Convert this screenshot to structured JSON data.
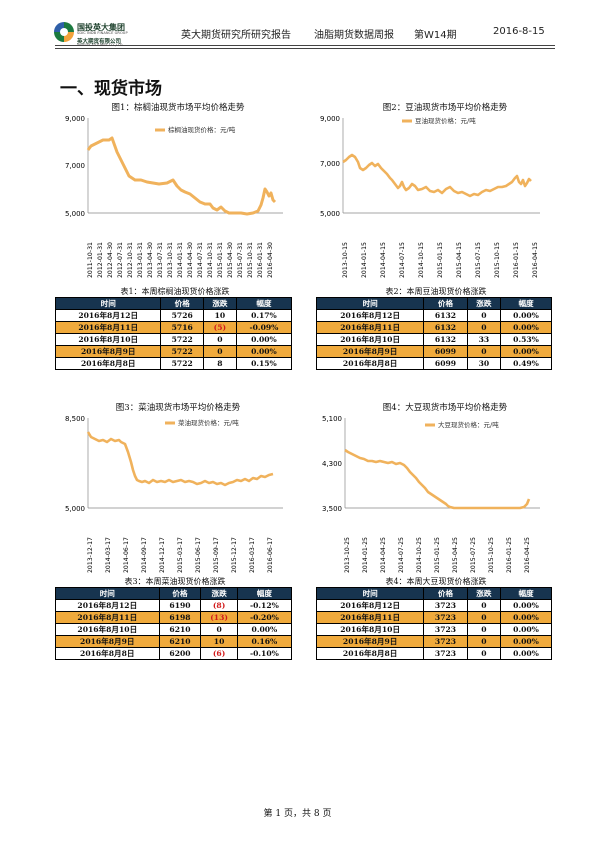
{
  "header": {
    "logo_cn": "国投英大集团",
    "logo_en": "SDIC INDB FINANCE GROUP",
    "logo_sub_cn": "英大期货有限公司",
    "logo_sub_en": "YINGDA FUTURES CO.,LTD",
    "org": "英大期货研究所研究报告",
    "report": "油脂期货数据周报",
    "issue": "第W14期",
    "date": "2016-8-15"
  },
  "section_title": "一、现货市场",
  "charts": [
    {
      "title": "图1：棕榈油现货市场平均价格走势",
      "legend": "棕榈油现货价格：元/吨",
      "y_ticks": [
        "9,000",
        "7,000",
        "5,000"
      ],
      "x_ticks": [
        "2011-10-31",
        "2012-01-31",
        "2012-04-30",
        "2012-07-31",
        "2012-10-31",
        "2013-01-31",
        "2013-04-30",
        "2013-07-31",
        "2013-10-31",
        "2014-01-31",
        "2014-04-30",
        "2014-07-31",
        "2014-10-31",
        "2015-01-31",
        "2015-04-30",
        "2015-07-31",
        "2015-10-31",
        "2016-01-31",
        "2016-04-30"
      ]
    },
    {
      "title": "图2：豆油现货市场平均价格走势",
      "legend": "豆油现货价格：元/吨",
      "y_ticks": [
        "9,000",
        "7,000",
        "5,000"
      ],
      "x_ticks": [
        "2013-10-15",
        "2014-01-15",
        "2014-04-15",
        "2014-07-15",
        "2014-10-15",
        "2015-01-15",
        "2015-04-15",
        "2015-07-15",
        "2015-10-15",
        "2016-01-15",
        "2016-04-15"
      ]
    },
    {
      "title": "图3：菜油现货市场平均价格走势",
      "legend": "菜油现货价格：元/吨",
      "y_ticks": [
        "8,500",
        "5,000"
      ],
      "x_ticks": [
        "2013-12-17",
        "2014-03-17",
        "2014-06-17",
        "2014-09-17",
        "2014-12-17",
        "2015-03-17",
        "2015-06-17",
        "2015-09-17",
        "2015-12-17",
        "2016-03-17",
        "2016-06-17"
      ]
    },
    {
      "title": "图4：大豆现货市场平均价格走势",
      "legend": "大豆现货价格：元/吨",
      "y_ticks": [
        "5,100",
        "4,300",
        "3,500"
      ],
      "x_ticks": [
        "2013-10-25",
        "2014-01-25",
        "2014-04-25",
        "2014-07-25",
        "2014-10-25",
        "2015-01-25",
        "2015-04-25",
        "2015-07-25",
        "2015-10-25",
        "2016-01-25",
        "2016-04-25"
      ]
    }
  ],
  "chart_data": [
    {
      "type": "line",
      "title": "图1：棕榈油现货市场平均价格走势",
      "series": [
        {
          "name": "棕榈油现货价格：元/吨",
          "x": [
            "2011-10-31",
            "2012-04-30",
            "2013-01-31",
            "2014-01-31",
            "2014-07-31",
            "2015-01-31",
            "2015-07-31",
            "2016-01-31",
            "2016-04-30"
          ],
          "values": [
            7800,
            8100,
            6400,
            6100,
            5600,
            5100,
            5000,
            5000,
            5800
          ]
        }
      ],
      "ylim": [
        5000,
        9000
      ]
    },
    {
      "type": "line",
      "title": "图2：豆油现货市场平均价格走势",
      "series": [
        {
          "name": "豆油现货价格：元/吨",
          "x": [
            "2013-10-15",
            "2014-01-15",
            "2014-04-15",
            "2014-07-15",
            "2014-10-15",
            "2015-01-15",
            "2015-04-15",
            "2015-07-15",
            "2015-10-15",
            "2016-01-15",
            "2016-04-15",
            "2016-08-12"
          ],
          "values": [
            7200,
            7400,
            6800,
            6600,
            5900,
            5800,
            5700,
            5800,
            5600,
            5800,
            6400,
            6132
          ]
        }
      ],
      "ylim": [
        5000,
        9000
      ]
    },
    {
      "type": "line",
      "title": "图3：菜油现货市场平均价格走势",
      "series": [
        {
          "name": "菜油现货价格：元/吨",
          "x": [
            "2013-12-17",
            "2014-03-17",
            "2014-06-17",
            "2014-09-17",
            "2014-12-17",
            "2015-06-17",
            "2016-03-17",
            "2016-06-17",
            "2016-08-12"
          ],
          "values": [
            8000,
            7800,
            7700,
            6300,
            6200,
            6100,
            6000,
            6100,
            6190
          ]
        }
      ],
      "ylim": [
        5000,
        8500
      ]
    },
    {
      "type": "line",
      "title": "图4：大豆现货市场平均价格走势",
      "series": [
        {
          "name": "大豆现货价格：元/吨",
          "x": [
            "2013-10-25",
            "2014-01-25",
            "2014-07-25",
            "2014-10-25",
            "2015-01-25",
            "2015-04-25",
            "2016-04-25",
            "2016-08-12"
          ],
          "values": [
            4600,
            4400,
            4250,
            3950,
            3750,
            3520,
            3500,
            3723
          ]
        }
      ],
      "ylim": [
        3500,
        5100
      ]
    }
  ],
  "tables": [
    {
      "title": "表1：本周棕榈油现货价格涨跌",
      "headers": [
        "时间",
        "价格",
        "涨跌",
        "幅度"
      ],
      "rows": [
        {
          "date": "2016年8月12日",
          "price": "5726",
          "change": "10",
          "pct": "0.17%",
          "hl": false,
          "neg": false
        },
        {
          "date": "2016年8月11日",
          "price": "5716",
          "change": "(5)",
          "pct": "-0.09%",
          "hl": true,
          "neg": true
        },
        {
          "date": "2016年8月10日",
          "price": "5722",
          "change": "0",
          "pct": "0.00%",
          "hl": false,
          "neg": false
        },
        {
          "date": "2016年8月9日",
          "price": "5722",
          "change": "0",
          "pct": "0.00%",
          "hl": true,
          "neg": false
        },
        {
          "date": "2016年8月8日",
          "price": "5722",
          "change": "8",
          "pct": "0.15%",
          "hl": false,
          "neg": false
        }
      ]
    },
    {
      "title": "表2：本周豆油现货价格涨跌",
      "headers": [
        "时间",
        "价格",
        "涨跌",
        "幅度"
      ],
      "rows": [
        {
          "date": "2016年8月12日",
          "price": "6132",
          "change": "0",
          "pct": "0.00%",
          "hl": false,
          "neg": false
        },
        {
          "date": "2016年8月11日",
          "price": "6132",
          "change": "0",
          "pct": "0.00%",
          "hl": true,
          "neg": false
        },
        {
          "date": "2016年8月10日",
          "price": "6132",
          "change": "33",
          "pct": "0.53%",
          "hl": false,
          "neg": false
        },
        {
          "date": "2016年8月9日",
          "price": "6099",
          "change": "0",
          "pct": "0.00%",
          "hl": true,
          "neg": false
        },
        {
          "date": "2016年8月8日",
          "price": "6099",
          "change": "30",
          "pct": "0.49%",
          "hl": false,
          "neg": false
        }
      ]
    },
    {
      "title": "表3：本周菜油现货价格涨跌",
      "headers": [
        "时间",
        "价格",
        "涨跌",
        "幅度"
      ],
      "rows": [
        {
          "date": "2016年8月12日",
          "price": "6190",
          "change": "(8)",
          "pct": "-0.12%",
          "hl": false,
          "neg": true
        },
        {
          "date": "2016年8月11日",
          "price": "6198",
          "change": "(13)",
          "pct": "-0.20%",
          "hl": true,
          "neg": true
        },
        {
          "date": "2016年8月10日",
          "price": "6210",
          "change": "0",
          "pct": "0.00%",
          "hl": false,
          "neg": false
        },
        {
          "date": "2016年8月9日",
          "price": "6210",
          "change": "10",
          "pct": "0.16%",
          "hl": true,
          "neg": false
        },
        {
          "date": "2016年8月8日",
          "price": "6200",
          "change": "(6)",
          "pct": "-0.10%",
          "hl": false,
          "neg": true
        }
      ]
    },
    {
      "title": "表4：本周大豆现货价格涨跌",
      "headers": [
        "时间",
        "价格",
        "涨跌",
        "幅度"
      ],
      "rows": [
        {
          "date": "2016年8月12日",
          "price": "3723",
          "change": "0",
          "pct": "0.00%",
          "hl": false,
          "neg": false
        },
        {
          "date": "2016年8月11日",
          "price": "3723",
          "change": "0",
          "pct": "0.00%",
          "hl": true,
          "neg": false
        },
        {
          "date": "2016年8月10日",
          "price": "3723",
          "change": "0",
          "pct": "0.00%",
          "hl": false,
          "neg": false
        },
        {
          "date": "2016年8月9日",
          "price": "3723",
          "change": "0",
          "pct": "0.00%",
          "hl": true,
          "neg": false
        },
        {
          "date": "2016年8月8日",
          "price": "3723",
          "change": "0",
          "pct": "0.00%",
          "hl": false,
          "neg": false
        }
      ]
    }
  ],
  "colors": {
    "line": "#f0b25c",
    "header_bg": "#17344f",
    "highlight": "#f0aa3c",
    "negative": "#d21b1b"
  },
  "footer": "第 1 页，共 8 页"
}
